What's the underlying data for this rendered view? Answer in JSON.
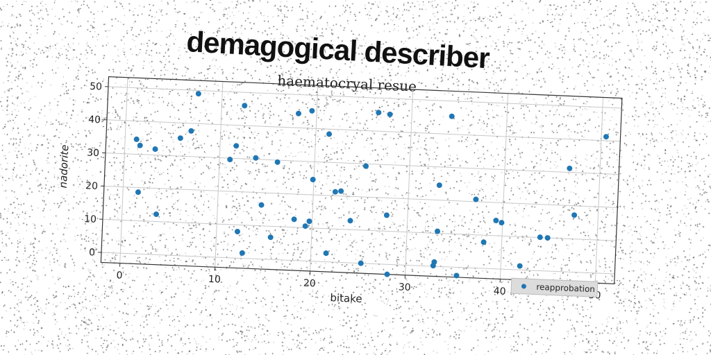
{
  "main_title": "demagogical describer",
  "chart_data": {
    "type": "scatter",
    "title": "haematocryal resue",
    "xlabel": "bitake",
    "ylabel": "nadorite",
    "xlim": [
      -2,
      52
    ],
    "ylim": [
      -3,
      53
    ],
    "xticks": [
      0,
      10,
      20,
      30,
      40,
      50
    ],
    "yticks": [
      0,
      10,
      20,
      30,
      40,
      50
    ],
    "grid": true,
    "legend_position": "lower-right",
    "marker_color": "#1f77b4",
    "series": [
      {
        "name": "reapprobation",
        "points": [
          [
            7.5,
            49
          ],
          [
            1.2,
            34.5
          ],
          [
            1.6,
            32.7
          ],
          [
            3.2,
            31.8
          ],
          [
            5.8,
            35.4
          ],
          [
            6.9,
            37.7
          ],
          [
            1.6,
            18.6
          ],
          [
            3.6,
            12.2
          ],
          [
            12.4,
            46
          ],
          [
            11.7,
            33.8
          ],
          [
            11.1,
            29.6
          ],
          [
            13.8,
            30.4
          ],
          [
            16.1,
            29.4
          ],
          [
            12.2,
            8
          ],
          [
            12.8,
            1.6
          ],
          [
            14.6,
            16.3
          ],
          [
            15.7,
            6.7
          ],
          [
            18.1,
            44.3
          ],
          [
            19.5,
            45.3
          ],
          [
            21.4,
            38.5
          ],
          [
            19.9,
            24.6
          ],
          [
            22.3,
            21.2
          ],
          [
            22.9,
            21.5
          ],
          [
            18.1,
            12.4
          ],
          [
            19.3,
            10.5
          ],
          [
            19.7,
            12
          ],
          [
            21.6,
            2.6
          ],
          [
            24,
            12.7
          ],
          [
            25.3,
            0
          ],
          [
            25.4,
            29.3
          ],
          [
            26.5,
            45.6
          ],
          [
            27.7,
            45.2
          ],
          [
            27.8,
            14.8
          ],
          [
            28.1,
            -3
          ],
          [
            33.2,
            24.5
          ],
          [
            33.2,
            10.6
          ],
          [
            32.9,
            0.2
          ],
          [
            33,
            1.3
          ],
          [
            35.4,
            -2.5
          ],
          [
            34.2,
            45.4
          ],
          [
            37.1,
            20.7
          ],
          [
            38.1,
            7.9
          ],
          [
            39.3,
            14.6
          ],
          [
            39.9,
            14
          ],
          [
            42,
            1.2
          ],
          [
            44,
            10.1
          ],
          [
            46.8,
            31.2
          ],
          [
            47.5,
            17.2
          ],
          [
            50.5,
            41.2
          ],
          [
            44.8,
            10
          ]
        ]
      }
    ]
  }
}
